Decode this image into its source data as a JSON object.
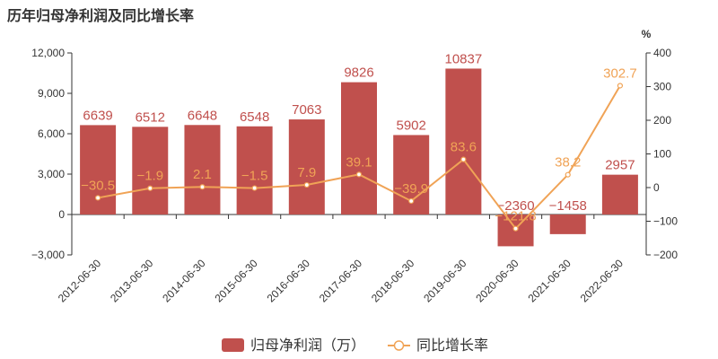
{
  "chart_data": {
    "type": "bar",
    "title": "历年归母净利润及同比增长率",
    "categories": [
      "2012-06-30",
      "2013-06-30",
      "2014-06-30",
      "2015-06-30",
      "2016-06-30",
      "2017-06-30",
      "2018-06-30",
      "2019-06-30",
      "2020-06-30",
      "2021-06-30",
      "2022-06-30"
    ],
    "series": [
      {
        "name": "归母净利润（万）",
        "type": "bar",
        "axis": "left",
        "values": [
          6639,
          6512,
          6648,
          6548,
          7063,
          9826,
          5902,
          10837,
          -2360,
          -1458,
          2957
        ],
        "labels": [
          "6639",
          "6512",
          "6648",
          "6548",
          "7063",
          "9826",
          "5902",
          "10837",
          "−2360",
          "−1458",
          "2957"
        ]
      },
      {
        "name": "同比增长率",
        "type": "line",
        "axis": "right",
        "values": [
          -30.5,
          -1.9,
          2.1,
          -1.5,
          7.9,
          39.1,
          -39.9,
          83.6,
          -121.8,
          38.2,
          302.7
        ],
        "labels": [
          "−30.5",
          "−1.9",
          "2.1",
          "−1.5",
          "7.9",
          "39.1",
          "−39.9",
          "83.6",
          "−121.8",
          "38.2",
          "302.7"
        ]
      }
    ],
    "y_left": {
      "ylim": [
        -3000,
        12000
      ],
      "ticks": [
        -3000,
        0,
        3000,
        6000,
        9000,
        12000
      ],
      "tick_labels": [
        "−3,000",
        "0",
        "3,000",
        "6,000",
        "9,000",
        "12,000"
      ]
    },
    "y_right": {
      "unit": "%",
      "ylim": [
        -200,
        400
      ],
      "ticks": [
        -200,
        -100,
        0,
        100,
        200,
        300,
        400
      ],
      "tick_labels": [
        "−200",
        "−100",
        "0",
        "100",
        "200",
        "300",
        "400"
      ]
    },
    "grid": false,
    "legend": "bottom-center",
    "colors": {
      "bar": "#c0504d",
      "line": "#f0a356"
    }
  }
}
